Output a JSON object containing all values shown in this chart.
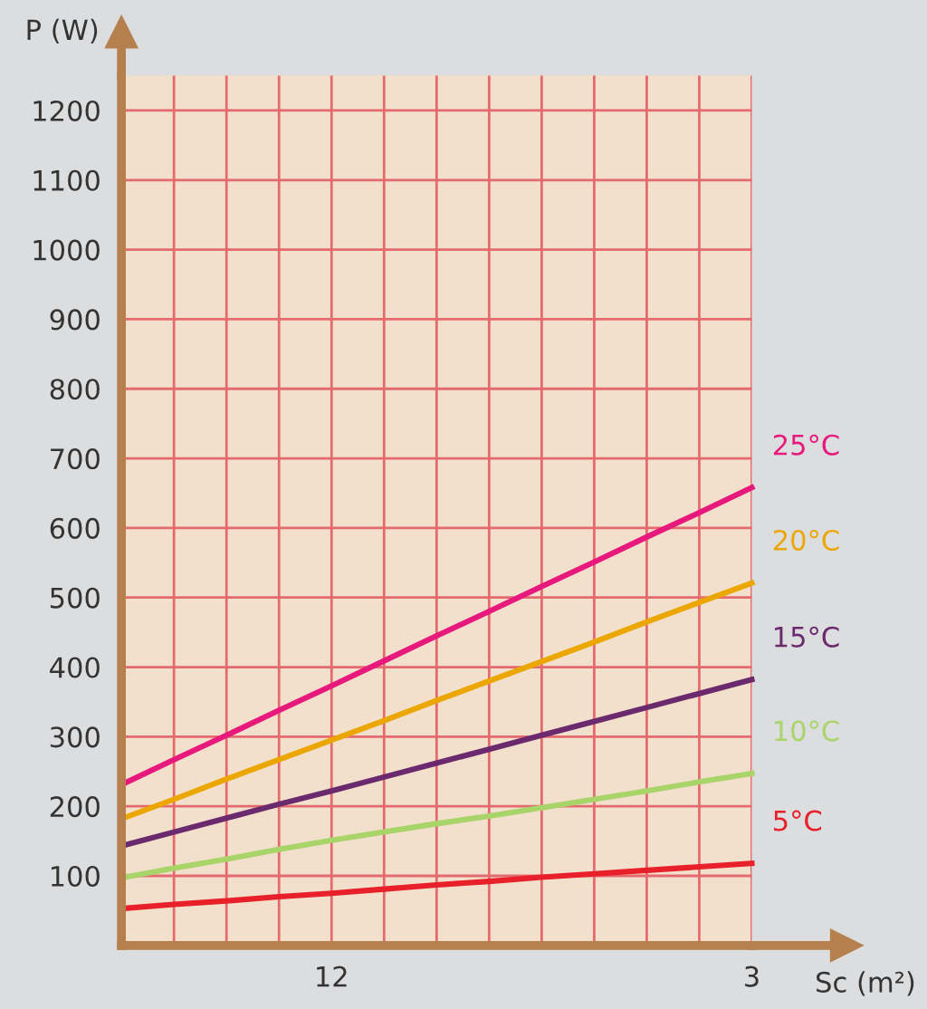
{
  "chart_data": {
    "type": "line",
    "xlabel": "Sc (m²)",
    "ylabel": "P (W)",
    "categories": [
      null,
      null,
      null,
      null,
      "12",
      null,
      null,
      null,
      null,
      null,
      null,
      null,
      "3"
    ],
    "series": [
      {
        "name": "25°C",
        "color": "#e8197d",
        "values": [
          231,
          267,
          302,
          338,
          373,
          409,
          445,
          480,
          516,
          551,
          587,
          622,
          658
        ]
      },
      {
        "name": "20°C",
        "color": "#eba600",
        "values": [
          182,
          210,
          239,
          267,
          295,
          323,
          352,
          380,
          408,
          436,
          465,
          493,
          521
        ]
      },
      {
        "name": "15°C",
        "color": "#6b2a6e",
        "values": [
          143,
          163,
          183,
          203,
          222,
          242,
          262,
          282,
          302,
          322,
          342,
          362,
          382
        ]
      },
      {
        "name": "10°C",
        "color": "#a8d46a",
        "values": [
          97,
          111,
          124,
          138,
          151,
          163,
          175,
          186,
          198,
          210,
          222,
          235,
          247
        ]
      },
      {
        "name": "5°C",
        "color": "#e8202a",
        "values": [
          53,
          59,
          64,
          70,
          75,
          81,
          87,
          92,
          98,
          103,
          108,
          113,
          118
        ]
      }
    ],
    "ylim": [
      0,
      1250
    ],
    "yticks": [
      100,
      200,
      300,
      400,
      500,
      600,
      700,
      800,
      900,
      1000,
      1100,
      1200
    ],
    "grid": true,
    "marker": "none",
    "line_style": "solid"
  }
}
